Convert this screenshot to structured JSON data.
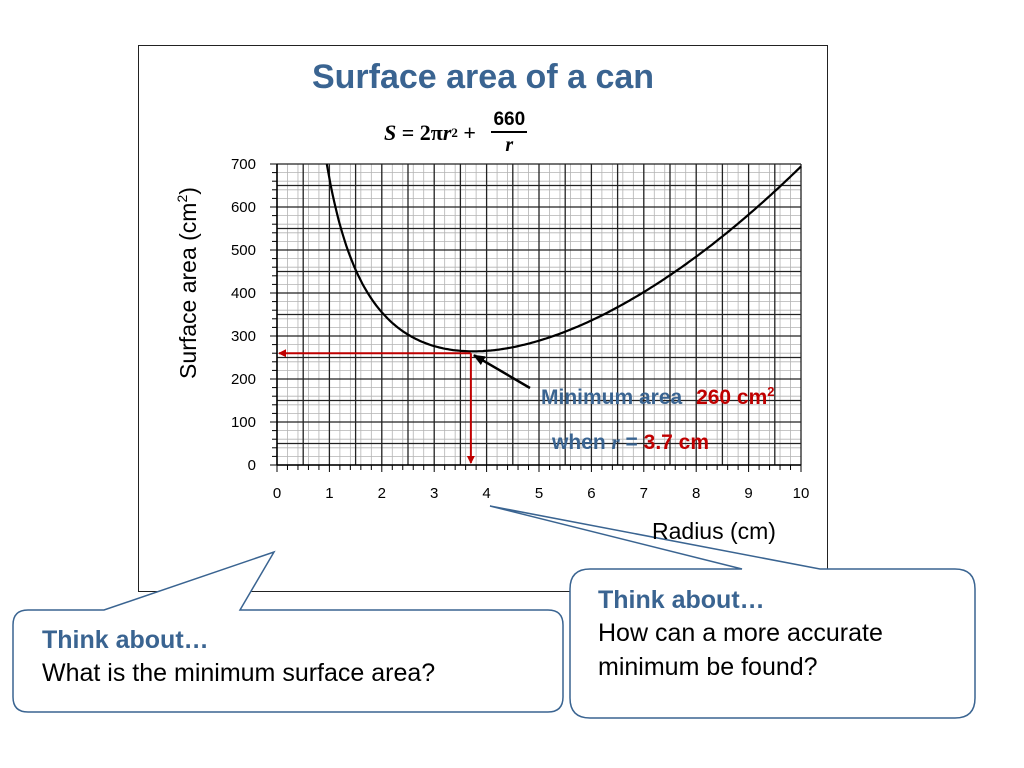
{
  "chart_data": {
    "type": "line",
    "title": "Surface area of a can",
    "formula": {
      "lhs": "S",
      "eq": " = 2",
      "pi": "π",
      "var": "r",
      "power": "2",
      "plus": " + ",
      "numerator": "660",
      "denominator": "r"
    },
    "xlabel": "Radius (cm)",
    "ylabel": "Surface area (cm²)",
    "ylabel_parts": {
      "main": "Surface area (cm",
      "sup": "2",
      "close": ")"
    },
    "xlim": [
      0,
      10
    ],
    "ylim": [
      0,
      700
    ],
    "xticks": [
      0,
      1,
      2,
      3,
      4,
      5,
      6,
      7,
      8,
      9,
      10
    ],
    "yticks": [
      0,
      100,
      200,
      300,
      400,
      500,
      600,
      700
    ],
    "grid": true,
    "series": [
      {
        "equation": "S = 2πr² + 660/r",
        "x_range": [
          0.95,
          10
        ],
        "color": "#000000"
      }
    ],
    "annotation": {
      "minimum": {
        "x": 3.7,
        "y": 260
      },
      "min_label": "Minimum area",
      "min_value": "260 cm",
      "min_value_sup": "2",
      "when_prefix": "when ",
      "when_var": "r",
      "when_eq": " = ",
      "when_value": "3.7 cm"
    }
  },
  "callouts": [
    {
      "heading": "Think about…",
      "text": "What is the minimum surface area?"
    },
    {
      "heading": "Think about…",
      "text": "How can a more accurate minimum be found?"
    }
  ],
  "colors": {
    "title": "#3a6491",
    "accent_red": "#c00000",
    "callout_border": "#3a6491"
  }
}
